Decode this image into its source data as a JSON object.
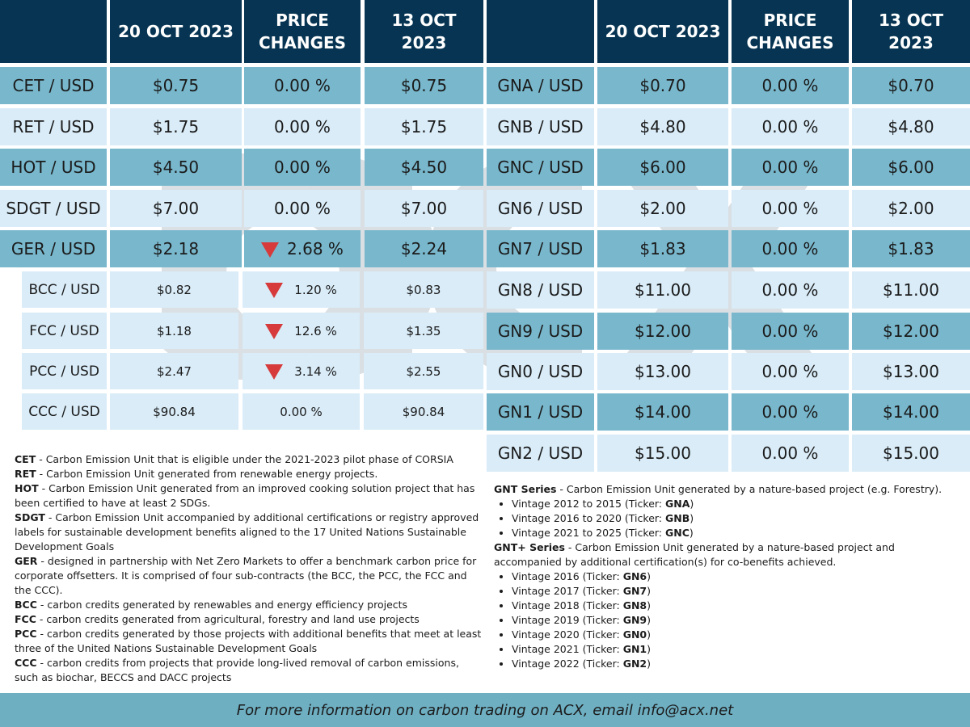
{
  "colors": {
    "header_bg": "#063452",
    "row_dark": "#78b7cc",
    "row_light": "#d9ecf8",
    "down_arrow": "#d63a3a",
    "footer_bg": "#6eafc2"
  },
  "watermark_icon": "acx-logo-watermark",
  "left_table": {
    "headers": [
      "",
      "20 OCT 2023",
      "PRICE CHANGES",
      "13 OCT 2023"
    ],
    "rows": [
      {
        "label": "CET / USD",
        "current": "$0.75",
        "change": "0.00 %",
        "previous": "$0.75",
        "down": false
      },
      {
        "label": "RET / USD",
        "current": "$1.75",
        "change": "0.00 %",
        "previous": "$1.75",
        "down": false
      },
      {
        "label": "HOT / USD",
        "current": "$4.50",
        "change": "0.00 %",
        "previous": "$4.50",
        "down": false
      },
      {
        "label": "SDGT / USD",
        "current": "$7.00",
        "change": "0.00 %",
        "previous": "$7.00",
        "down": false
      },
      {
        "label": "GER / USD",
        "current": "$2.18",
        "change": "2.68 %",
        "previous": "$2.24",
        "down": true
      }
    ],
    "sub_rows": [
      {
        "label": "BCC / USD",
        "current": "$0.82",
        "change": "1.20 %",
        "previous": "$0.83",
        "down": true
      },
      {
        "label": "FCC / USD",
        "current": "$1.18",
        "change": "12.6 %",
        "previous": "$1.35",
        "down": true
      },
      {
        "label": "PCC / USD",
        "current": "$2.47",
        "change": "3.14 %",
        "previous": "$2.55",
        "down": true
      },
      {
        "label": "CCC / USD",
        "current": "$90.84",
        "change": "0.00 %",
        "previous": "$90.84",
        "down": false
      }
    ]
  },
  "right_table": {
    "headers": [
      "",
      "20 OCT 2023",
      "PRICE CHANGES",
      "13 OCT 2023"
    ],
    "rows": [
      {
        "label": "GNA / USD",
        "current": "$0.70",
        "change": "0.00 %",
        "previous": "$0.70"
      },
      {
        "label": "GNB / USD",
        "current": "$4.80",
        "change": "0.00 %",
        "previous": "$4.80"
      },
      {
        "label": "GNC / USD",
        "current": "$6.00",
        "change": "0.00 %",
        "previous": "$6.00"
      },
      {
        "label": "GN6 / USD",
        "current": "$2.00",
        "change": "0.00 %",
        "previous": "$2.00"
      },
      {
        "label": "GN7 / USD",
        "current": "$1.83",
        "change": "0.00 %",
        "previous": "$1.83"
      },
      {
        "label": "GN8 / USD",
        "current": "$11.00",
        "change": "0.00 %",
        "previous": "$11.00"
      },
      {
        "label": "GN9 / USD",
        "current": "$12.00",
        "change": "0.00 %",
        "previous": "$12.00"
      },
      {
        "label": "GN0 / USD",
        "current": "$13.00",
        "change": "0.00 %",
        "previous": "$13.00"
      },
      {
        "label": "GN1 / USD",
        "current": "$14.00",
        "change": "0.00 %",
        "previous": "$14.00"
      },
      {
        "label": "GN2 / USD",
        "current": "$15.00",
        "change": "0.00 %",
        "previous": "$15.00"
      }
    ]
  },
  "left_notes": [
    {
      "term": "CET",
      "text": " - Carbon Emission Unit that is eligible under the 2021-2023 pilot phase of CORSIA"
    },
    {
      "term": "RET",
      "text": " - Carbon Emission Unit generated from renewable energy projects."
    },
    {
      "term": "HOT",
      "text": " - Carbon Emission Unit generated from an improved cooking solution project that has been certified to have at least 2 SDGs."
    },
    {
      "term": "SDGT",
      "text": " - Carbon Emission Unit accompanied by additional certifications or registry approved labels for sustainable development benefits aligned to the 17 United Nations Sustainable Development Goals"
    },
    {
      "term": "GER",
      "text": " - designed in partnership with Net Zero Markets to offer a benchmark carbon price for corporate offsetters. It is comprised of four sub-contracts (the BCC, the PCC, the FCC and the CCC)."
    },
    {
      "term": "BCC",
      "text": " - carbon credits generated by renewables and energy efficiency projects"
    },
    {
      "term": "FCC",
      "text": " - carbon credits generated from agricultural, forestry and land use projects"
    },
    {
      "term": "PCC",
      "text": " - carbon credits generated by those projects with additional benefits that meet at least three of the United Nations Sustainable Development Goals"
    },
    {
      "term": "CCC",
      "text": " - carbon credits from projects that provide long-lived removal of carbon emissions, such as biochar, BECCS and DACC projects"
    }
  ],
  "right_notes": {
    "gnt": {
      "term": "GNT Series",
      "text": " - Carbon Emission Unit generated by a nature-based project (e.g. Forestry).",
      "items": [
        {
          "pre": "Vintage 2012 to 2015 (Ticker: ",
          "ticker": "GNA",
          "post": ")"
        },
        {
          "pre": "Vintage 2016 to 2020 (Ticker: ",
          "ticker": "GNB",
          "post": ")"
        },
        {
          "pre": "Vintage 2021 to 2025 (Ticker: ",
          "ticker": "GNC",
          "post": ")"
        }
      ]
    },
    "gntplus": {
      "term": "GNT+ Series",
      "text": " - Carbon Emission Unit generated by a nature-based project and accompanied by additional certification(s) for co-benefits achieved.",
      "items": [
        {
          "pre": "Vintage 2016 (Ticker: ",
          "ticker": "GN6",
          "post": ")"
        },
        {
          "pre": "Vintage 2017 (Ticker: ",
          "ticker": "GN7",
          "post": ")"
        },
        {
          "pre": "Vintage 2018 (Ticker: ",
          "ticker": "GN8",
          "post": ")"
        },
        {
          "pre": "Vintage 2019 (Ticker: ",
          "ticker": "GN9",
          "post": ")"
        },
        {
          "pre": "Vintage 2020 (Ticker: ",
          "ticker": "GN0",
          "post": ")"
        },
        {
          "pre": "Vintage 2021 (Ticker: ",
          "ticker": "GN1",
          "post": ")"
        },
        {
          "pre": "Vintage 2022 (Ticker: ",
          "ticker": "GN2",
          "post": ")"
        }
      ]
    }
  },
  "footer": {
    "text": "For more information on carbon trading on ACX, email info@acx.net"
  }
}
